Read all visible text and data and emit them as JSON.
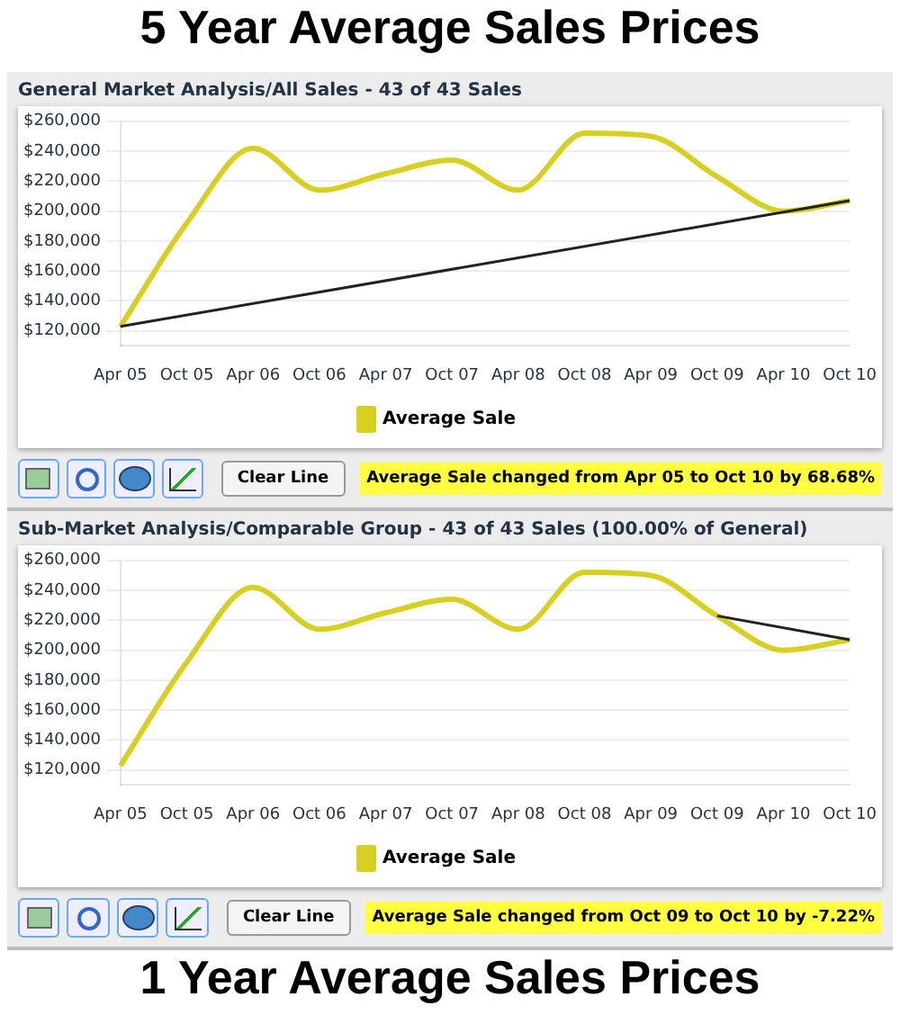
{
  "chart_data": [
    {
      "type": "line",
      "title": "5 Year Average Sales Prices",
      "subtitle": "General Market Analysis/All Sales - 43 of 43 Sales",
      "categories": [
        "Apr 05",
        "Oct 05",
        "Apr 06",
        "Oct 06",
        "Apr 07",
        "Oct 07",
        "Apr 08",
        "Oct 08",
        "Apr 09",
        "Oct 09",
        "Apr 10",
        "Oct 10"
      ],
      "series": [
        {
          "name": "Average Sale",
          "color": "#d8d020",
          "values": [
            123000,
            192000,
            242000,
            214000,
            225000,
            234000,
            214000,
            252000,
            250000,
            223000,
            200000,
            207000
          ]
        },
        {
          "color": "#222222",
          "values": [
            123000,
            null,
            null,
            null,
            null,
            null,
            null,
            null,
            null,
            null,
            null,
            207000
          ]
        }
      ],
      "ylim": [
        110000,
        260000
      ],
      "yticks": [
        {
          "value": 120000,
          "label": "$120,000"
        },
        {
          "value": 140000,
          "label": "$140,000"
        },
        {
          "value": 160000,
          "label": "$160,000"
        },
        {
          "value": 180000,
          "label": "$180,000"
        },
        {
          "value": 200000,
          "label": "$200,000"
        },
        {
          "value": 220000,
          "label": "$220,000"
        },
        {
          "value": 240000,
          "label": "$240,000"
        },
        {
          "value": 260000,
          "label": "$260,000"
        }
      ],
      "grid": "y",
      "legend": "bottom",
      "marker": "none",
      "annotations": [
        "Clear Line",
        "Average Sale changed from Apr 05 to Oct 10 by 68.68%"
      ]
    },
    {
      "type": "line",
      "title": "1 Year Average Sales Prices",
      "subtitle": "Sub-Market Analysis/Comparable Group - 43 of 43 Sales (100.00% of General)",
      "categories": [
        "Apr 05",
        "Oct 05",
        "Apr 06",
        "Oct 06",
        "Apr 07",
        "Oct 07",
        "Apr 08",
        "Oct 08",
        "Apr 09",
        "Oct 09",
        "Apr 10",
        "Oct 10"
      ],
      "series": [
        {
          "name": "Average Sale",
          "color": "#d8d020",
          "values": [
            123000,
            192000,
            242000,
            214000,
            225000,
            234000,
            214000,
            252000,
            250000,
            223000,
            200000,
            207000
          ]
        },
        {
          "color": "#222222",
          "values": [
            null,
            null,
            null,
            null,
            null,
            null,
            null,
            null,
            null,
            223000,
            null,
            207000
          ]
        }
      ],
      "ylim": [
        110000,
        260000
      ],
      "yticks": [
        {
          "value": 120000,
          "label": "$120,000"
        },
        {
          "value": 140000,
          "label": "$140,000"
        },
        {
          "value": 160000,
          "label": "$160,000"
        },
        {
          "value": 180000,
          "label": "$180,000"
        },
        {
          "value": 200000,
          "label": "$200,000"
        },
        {
          "value": 220000,
          "label": "$220,000"
        },
        {
          "value": 240000,
          "label": "$240,000"
        },
        {
          "value": 260000,
          "label": "$260,000"
        }
      ],
      "grid": "y",
      "legend": "bottom",
      "marker": "none",
      "annotations": [
        "Clear Line",
        "Average Sale changed from Oct 09 to Oct 10 by -7.22%"
      ]
    }
  ]
}
